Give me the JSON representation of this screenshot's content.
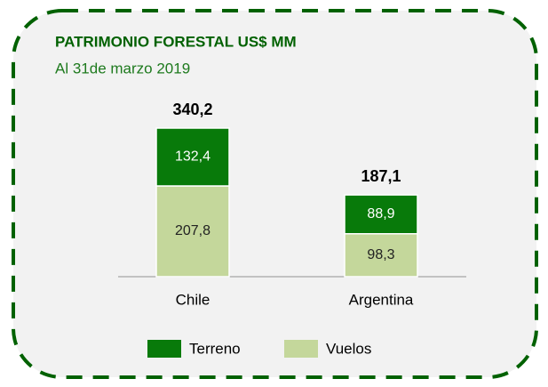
{
  "chart_data": {
    "type": "stacked_bar",
    "title": "PATRIMONIO FORESTAL US$ MM",
    "subtitle": "Al 31de marzo 2019",
    "categories": [
      "Chile",
      "Argentina"
    ],
    "series": [
      {
        "name": "Terreno",
        "color": "#087a0a",
        "values": [
          132.4,
          88.9
        ],
        "value_labels": [
          "132,4",
          "88,9"
        ]
      },
      {
        "name": "Vuelos",
        "color": "#c4d79b",
        "values": [
          207.8,
          98.3
        ],
        "value_labels": [
          "207,8",
          "98,3"
        ]
      }
    ],
    "totals": [
      340.2,
      187.1
    ],
    "total_labels": [
      "340,2",
      "187,1"
    ]
  }
}
